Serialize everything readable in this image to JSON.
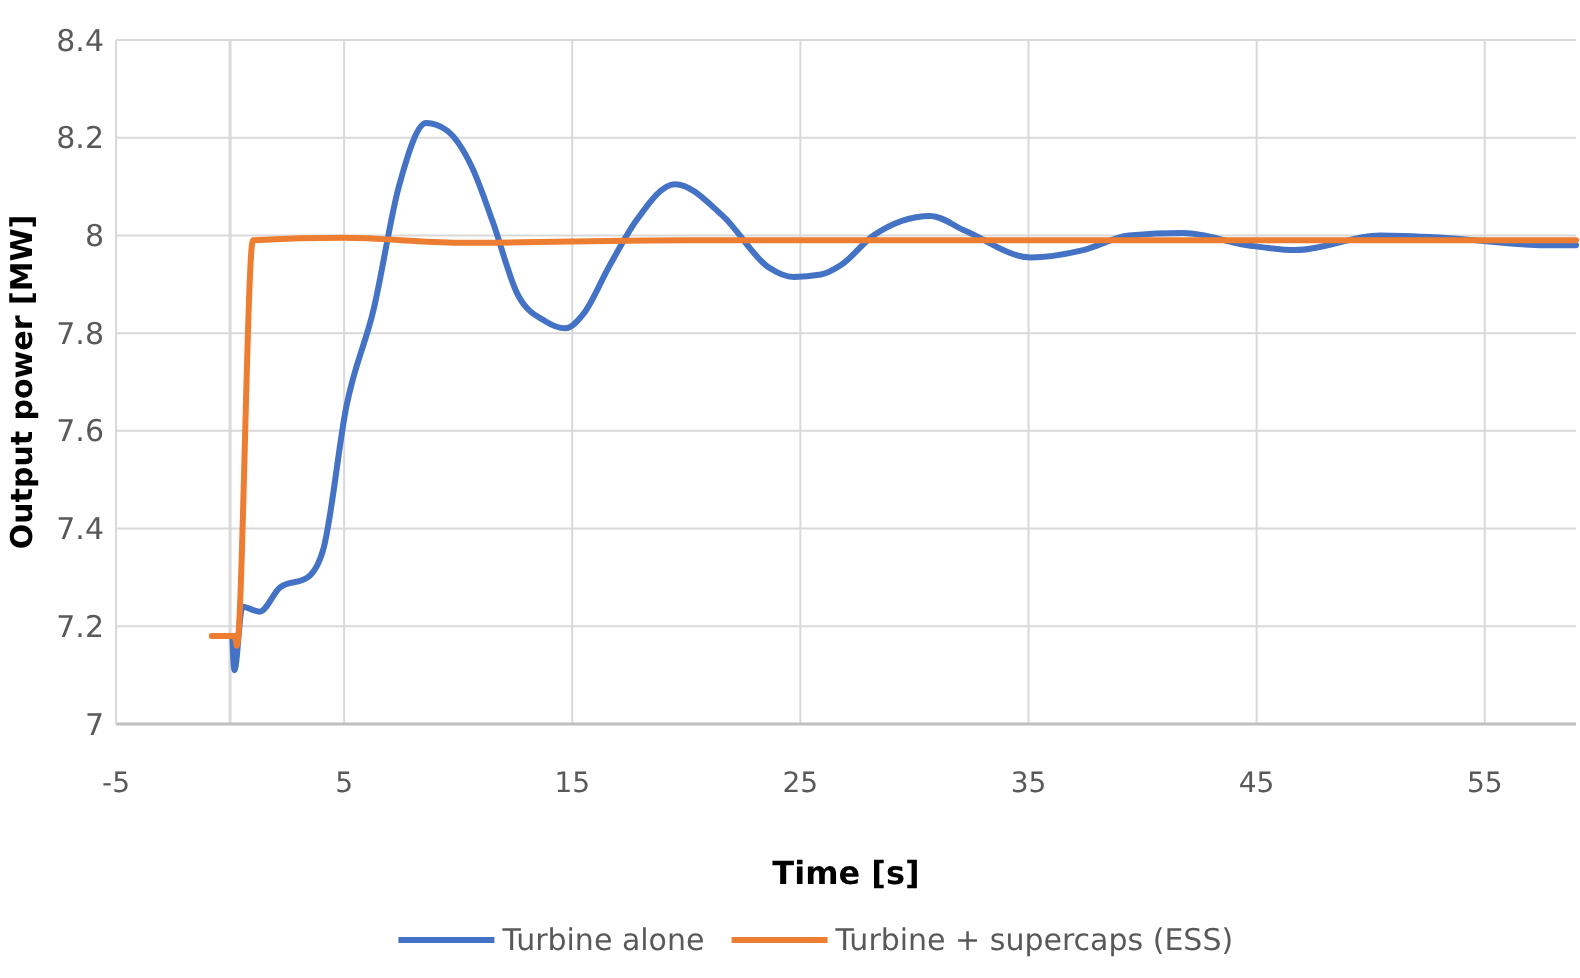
{
  "chart_data": {
    "type": "line",
    "xlabel": "Time [s]",
    "ylabel": "Output power [MW]",
    "xlim": [
      -5,
      59
    ],
    "ylim": [
      7,
      8.4
    ],
    "xticks": [
      -5,
      5,
      15,
      25,
      35,
      45,
      55
    ],
    "yticks": [
      7,
      7.2,
      7.4,
      7.6,
      7.8,
      8,
      8.2,
      8.4
    ],
    "grid": true,
    "legend": "bottom",
    "ref_lines": [
      {
        "axis": "x",
        "value": 0,
        "color": "#d9d9d9"
      }
    ],
    "series": [
      {
        "name": "Turbine alone",
        "color": "#4472c4",
        "x": [
          0.1,
          0.19,
          0.54,
          1.3,
          2.2,
          3.4,
          4.1,
          5.1,
          6.3,
          7.4,
          8.6,
          9.5,
          10.6,
          11.5,
          12.6,
          13.8,
          14.7,
          15.5,
          16.6,
          17.8,
          19.5,
          21.6,
          23.6,
          24.7,
          25.9,
          26.8,
          28.2,
          30.7,
          32.2,
          35.1,
          37.4,
          39.4,
          41.8,
          44.6,
          46.7,
          50.4,
          53.3,
          57.6,
          59
        ],
        "values": [
          7.18,
          7.11,
          7.24,
          7.23,
          7.28,
          7.3,
          7.36,
          7.65,
          7.85,
          8.1,
          8.23,
          8.215,
          8.14,
          8.03,
          7.88,
          7.825,
          7.81,
          7.84,
          7.935,
          8.03,
          8.105,
          8.04,
          7.935,
          7.915,
          7.92,
          7.94,
          8,
          8.04,
          8.01,
          7.955,
          7.97,
          8,
          8.005,
          7.98,
          7.97,
          8,
          7.995,
          7.98,
          7.98
        ]
      },
      {
        "name": "Turbine + supercaps (ESS)",
        "color": "#ed7d31",
        "x": [
          -0.8,
          0.2,
          0.3,
          1,
          5,
          10,
          20,
          59
        ],
        "values": [
          7.18,
          7.18,
          7.16,
          7.99,
          7.995,
          7.985,
          7.99,
          7.99
        ]
      }
    ]
  }
}
